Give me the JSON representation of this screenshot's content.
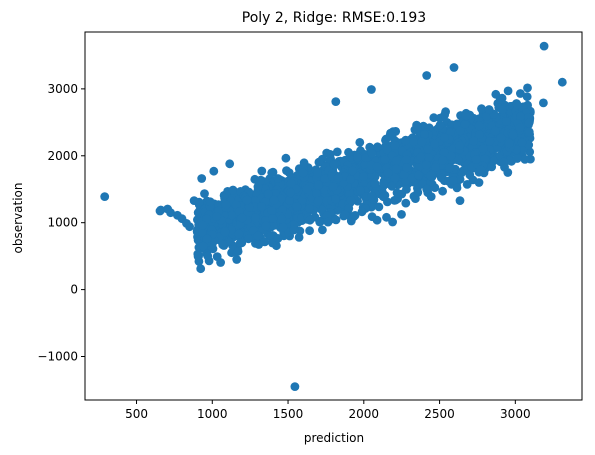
{
  "chart_data": {
    "type": "scatter",
    "title": "Poly 2, Ridge: RMSE:0.193",
    "xlabel": "prediction",
    "ylabel": "observation",
    "xlim": [
      160,
      3440
    ],
    "ylim": [
      -1650,
      3850
    ],
    "xticks": [
      500,
      1000,
      1500,
      2000,
      2500,
      3000
    ],
    "yticks": [
      -1000,
      0,
      1000,
      2000,
      3000
    ],
    "xtick_labels": [
      "500",
      "1000",
      "1500",
      "2000",
      "2500",
      "3000"
    ],
    "ytick_labels": [
      "−1000",
      "0",
      "1000",
      "2000",
      "3000"
    ],
    "grid": false,
    "marker_color": "#1f77b4",
    "main_cloud": {
      "x_range": [
        900,
        3100
      ],
      "relation": "observation ≈ 0.72 × prediction + 240",
      "spread_sd": 230
    },
    "points": [
      {
        "x": 290,
        "y": 1390
      },
      {
        "x": 1545,
        "y": -1450
      },
      {
        "x": 3310,
        "y": 3100
      },
      {
        "x": 3190,
        "y": 3640
      },
      {
        "x": 1815,
        "y": 2810
      },
      {
        "x": 2050,
        "y": 2990
      },
      {
        "x": 2595,
        "y": 3320
      },
      {
        "x": 2415,
        "y": 3200
      },
      {
        "x": 655,
        "y": 1175
      },
      {
        "x": 660,
        "y": 1190
      },
      {
        "x": 705,
        "y": 1205
      },
      {
        "x": 725,
        "y": 1150
      },
      {
        "x": 770,
        "y": 1110
      },
      {
        "x": 800,
        "y": 1060
      },
      {
        "x": 830,
        "y": 990
      },
      {
        "x": 850,
        "y": 940
      },
      {
        "x": 880,
        "y": 1330
      },
      {
        "x": 930,
        "y": 1660
      },
      {
        "x": 940,
        "y": 650
      },
      {
        "x": 965,
        "y": 760
      },
      {
        "x": 1010,
        "y": 1770
      },
      {
        "x": 1115,
        "y": 1880
      },
      {
        "x": 1195,
        "y": 700
      },
      {
        "x": 2055,
        "y": 1090
      },
      {
        "x": 2150,
        "y": 1080
      },
      {
        "x": 2190,
        "y": 1010
      },
      {
        "x": 2445,
        "y": 1390
      },
      {
        "x": 2520,
        "y": 1470
      },
      {
        "x": 2615,
        "y": 1520
      },
      {
        "x": 2635,
        "y": 1330
      },
      {
        "x": 2720,
        "y": 1640
      },
      {
        "x": 2760,
        "y": 1600
      },
      {
        "x": 2950,
        "y": 1750
      },
      {
        "x": 3030,
        "y": 2420
      },
      {
        "x": 3090,
        "y": 2490
      },
      {
        "x": 3185,
        "y": 2790
      },
      {
        "x": 2960,
        "y": 2180
      }
    ]
  }
}
